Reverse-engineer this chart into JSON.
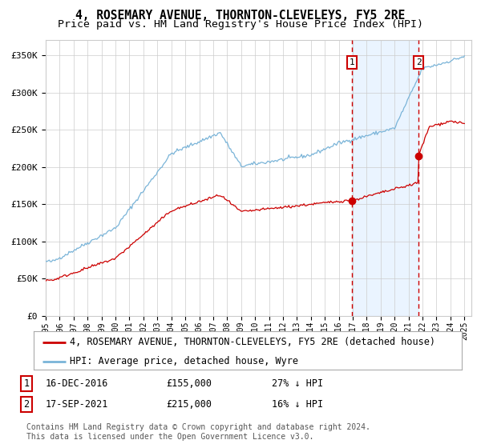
{
  "title": "4, ROSEMARY AVENUE, THORNTON-CLEVELEYS, FY5 2RE",
  "subtitle": "Price paid vs. HM Land Registry's House Price Index (HPI)",
  "ylim": [
    0,
    370000
  ],
  "yticks": [
    0,
    50000,
    100000,
    150000,
    200000,
    250000,
    300000,
    350000
  ],
  "ytick_labels": [
    "£0",
    "£50K",
    "£100K",
    "£150K",
    "£200K",
    "£250K",
    "£300K",
    "£350K"
  ],
  "hpi_color": "#7ab4d8",
  "price_color": "#cc0000",
  "dashed_color": "#cc0000",
  "shaded_color": "#ddeeff",
  "background_color": "#ffffff",
  "grid_color": "#cccccc",
  "legend_label_price": "4, ROSEMARY AVENUE, THORNTON-CLEVELEYS, FY5 2RE (detached house)",
  "legend_label_hpi": "HPI: Average price, detached house, Wyre",
  "transaction1_date": "16-DEC-2016",
  "transaction1_price": 155000,
  "transaction1_note": "27% ↓ HPI",
  "transaction1_year": 2016.96,
  "transaction2_date": "17-SEP-2021",
  "transaction2_price": 215000,
  "transaction2_note": "16% ↓ HPI",
  "transaction2_year": 2021.71,
  "footer": "Contains HM Land Registry data © Crown copyright and database right 2024.\nThis data is licensed under the Open Government Licence v3.0.",
  "title_fontsize": 10.5,
  "subtitle_fontsize": 9.5,
  "tick_fontsize": 8,
  "legend_fontsize": 8.5
}
